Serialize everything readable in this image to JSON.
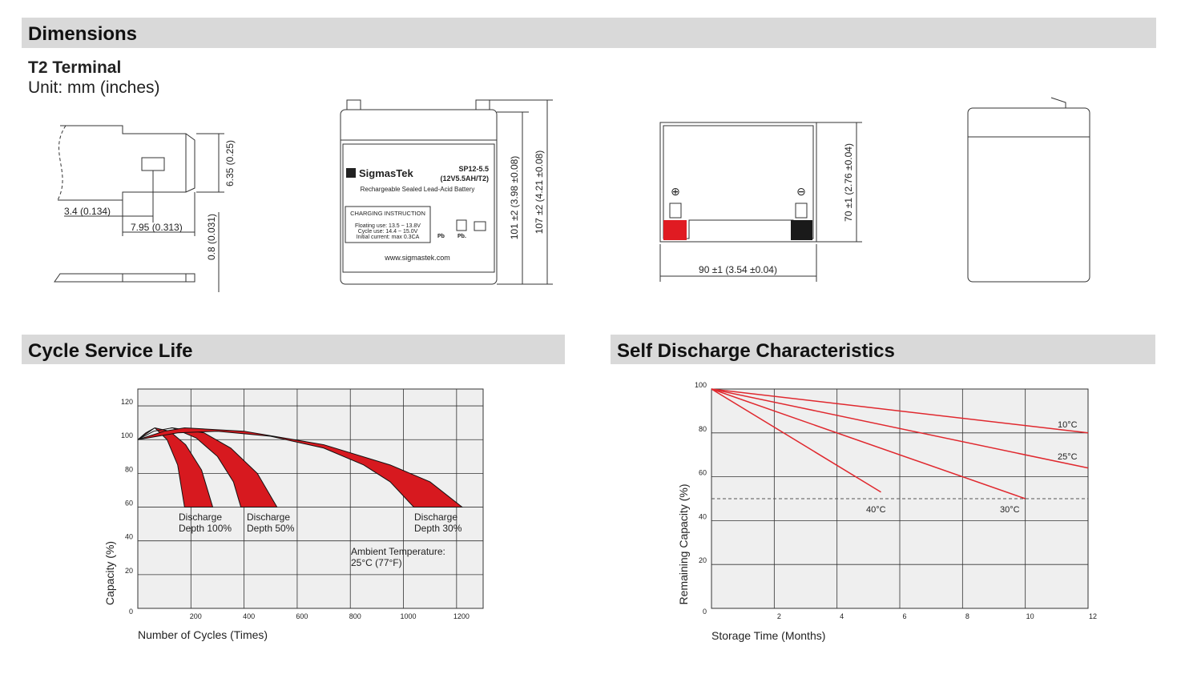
{
  "dimensions": {
    "title": "Dimensions",
    "subtitle": "T2 Terminal",
    "unit": "Unit: mm (inches)",
    "terminal": {
      "height": "6.35 (0.25)",
      "offset": "3.4 (0.134)",
      "width": "7.95 (0.313)",
      "thickness": "0.8 (0.031)"
    },
    "front": {
      "brand": "SigmasTek",
      "model": "SP12-5.5",
      "rating": "(12V5.5AH/T2)",
      "description": "Rechargeable Sealed Lead-Acid Battery",
      "charging_title": "CHARGING INSTRUCTION",
      "charging": [
        "Floating use: 13.5 ~ 13.8V",
        "Cycle use: 14.4 ~ 15.0V",
        "Initial current: max 0.3CA"
      ],
      "pb": [
        "Pb",
        "Pb."
      ],
      "website": "www.sigmastek.com",
      "height_case": "101 ±2 (3.98 ±0.08)",
      "height_total": "107 ±2 (4.21 ±0.08)"
    },
    "top": {
      "positive": "⊕",
      "negative": "⊖",
      "width": "70 ±1 (2.76 ±0.04)",
      "length": "90 ±1 (3.54 ±0.04)"
    }
  },
  "cycle_life": {
    "title": "Cycle Service Life",
    "chart": {
      "type": "area",
      "xlabel": "Number of Cycles (Times)",
      "ylabel": "Capacity (%)",
      "xlim": [
        0,
        1300
      ],
      "ylim": [
        0,
        130
      ],
      "xticks": [
        200,
        400,
        600,
        800,
        1000,
        1200
      ],
      "yticks": [
        0,
        20,
        40,
        60,
        80,
        100,
        120
      ],
      "grid": true,
      "series": [
        {
          "label": [
            "Discharge",
            "Depth 100%"
          ],
          "color": "#d7191f",
          "outer": {
            "x": [
              0,
              64,
              120,
              180,
              240,
              282
            ],
            "values": [
              100,
              107,
              105,
              97,
              82,
              60
            ]
          },
          "inner": {
            "x": [
              0,
              30,
              64,
              110,
              150,
              176
            ],
            "values": [
              100,
              104,
              107,
              100,
              85,
              60
            ]
          }
        },
        {
          "label": [
            "Discharge",
            "Depth 50%"
          ],
          "color": "#d7191f",
          "outer": {
            "x": [
              0,
              60,
              130,
              250,
              350,
              450,
              524
            ],
            "values": [
              100,
              105,
              107,
              104,
              95,
              80,
              60
            ]
          },
          "inner": {
            "x": [
              0,
              60,
              130,
              220,
              300,
              360,
              388
            ],
            "values": [
              100,
              105,
              107,
              101,
              90,
              75,
              60
            ]
          }
        },
        {
          "label": [
            "Discharge",
            "Depth 30%"
          ],
          "color": "#d7191f",
          "outer": {
            "x": [
              0,
              100,
              176,
              400,
              700,
              950,
              1100,
              1221
            ],
            "values": [
              100,
              105,
              107,
              105,
              97,
              85,
              75,
              60
            ]
          },
          "inner": {
            "x": [
              0,
              150,
              300,
              500,
              700,
              850,
              950,
              1039
            ],
            "values": [
              100,
              104,
              105,
              102,
              95,
              85,
              75,
              60
            ]
          }
        }
      ],
      "annotation": [
        "Ambient Temperature:",
        "25°C (77°F)"
      ]
    }
  },
  "self_discharge": {
    "title": "Self Discharge Characteristics",
    "chart": {
      "type": "line",
      "xlabel": "Storage Time (Months)",
      "ylabel": "Remaining Capacity (%)",
      "xlim": [
        0,
        12
      ],
      "ylim": [
        0,
        100
      ],
      "xticks": [
        2,
        4,
        6,
        8,
        10,
        12
      ],
      "yticks": [
        0,
        20,
        40,
        60,
        80,
        100
      ],
      "grid": true,
      "reference_line": 50,
      "series": [
        {
          "name": "10°C",
          "color": "#e0282e",
          "x": [
            0,
            12
          ],
          "values": [
            100,
            80
          ]
        },
        {
          "name": "25°C",
          "color": "#e0282e",
          "x": [
            0,
            12
          ],
          "values": [
            100,
            64
          ]
        },
        {
          "name": "30°C",
          "color": "#e0282e",
          "x": [
            0,
            10
          ],
          "values": [
            100,
            50
          ]
        },
        {
          "name": "40°C",
          "color": "#e0282e",
          "x": [
            0,
            5.4
          ],
          "values": [
            100,
            53
          ]
        }
      ]
    }
  }
}
